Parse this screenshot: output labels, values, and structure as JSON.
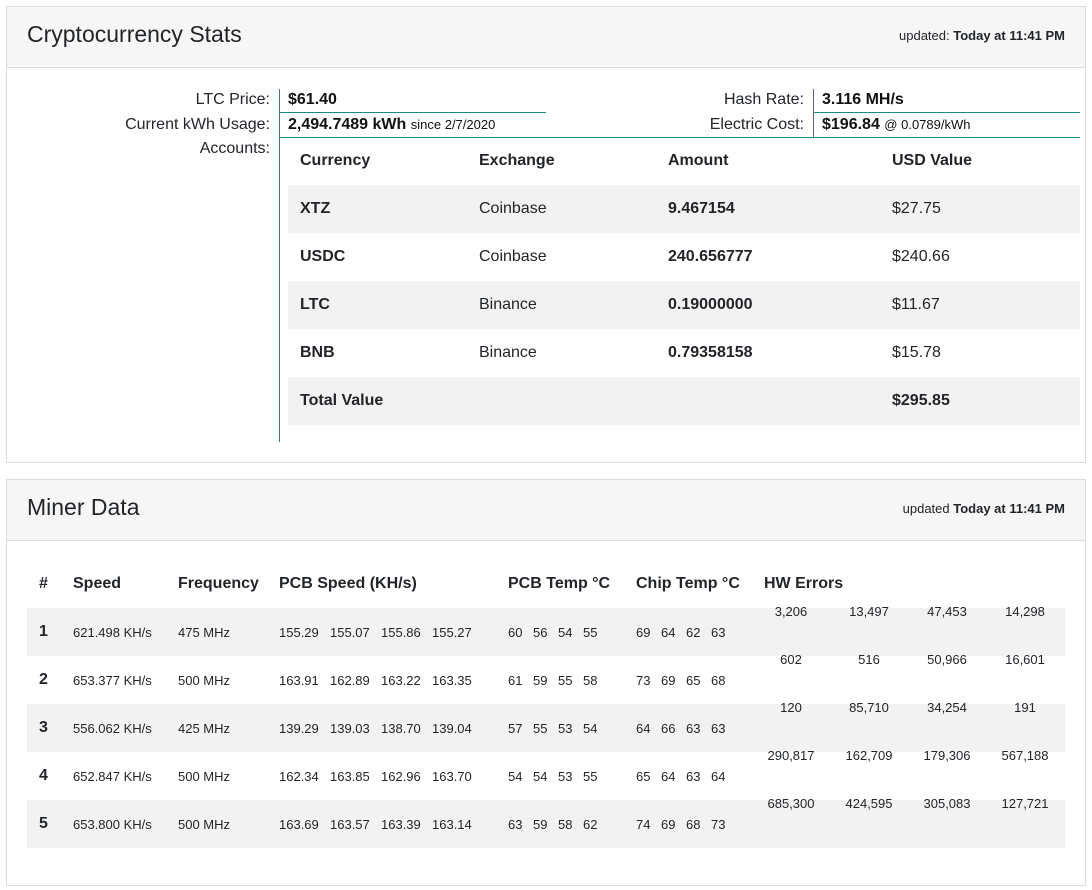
{
  "stats": {
    "title": "Cryptocurrency Stats",
    "updated_label": "updated:",
    "updated_value": "Today at 11:41 PM",
    "ltc_price_label": "LTC Price:",
    "ltc_price": "$61.40",
    "kwh_label": "Current kWh Usage:",
    "kwh_value": "2,494.7489 kWh",
    "kwh_since": "since 2/7/2020",
    "accounts_label": "Accounts:",
    "hash_rate_label": "Hash Rate:",
    "hash_rate": "3.116 MH/s",
    "electric_cost_label": "Electric Cost:",
    "electric_cost": "$196.84",
    "electric_rate": "@ 0.0789/kWh",
    "accent_color": "#1a8a8a",
    "columns": [
      "Currency",
      "Exchange",
      "Amount",
      "USD Value"
    ],
    "accounts": [
      {
        "currency": "XTZ",
        "exchange": "Coinbase",
        "amount": "9.467154",
        "usd": "$27.75"
      },
      {
        "currency": "USDC",
        "exchange": "Coinbase",
        "amount": "240.656777",
        "usd": "$240.66"
      },
      {
        "currency": "LTC",
        "exchange": "Binance",
        "amount": "0.19000000",
        "usd": "$11.67"
      },
      {
        "currency": "BNB",
        "exchange": "Binance",
        "amount": "0.79358158",
        "usd": "$15.78"
      }
    ],
    "total_label": "Total Value",
    "total_value": "$295.85"
  },
  "miner": {
    "title": "Miner Data",
    "updated_label": "updated",
    "updated_value": "Today at 11:41 PM",
    "columns": [
      "#",
      "Speed",
      "Frequency",
      "PCB Speed (KH/s)",
      "PCB Temp °C",
      "Chip Temp °C",
      "HW Errors"
    ],
    "rows": [
      {
        "idx": "1",
        "speed": "621.498 KH/s",
        "freq": "475 MHz",
        "pcb": [
          "155.29",
          "155.07",
          "155.86",
          "155.27"
        ],
        "pcb_temp": [
          "60",
          "56",
          "54",
          "55"
        ],
        "chip_temp": [
          "69",
          "64",
          "62",
          "63"
        ],
        "errors": [
          "3,206",
          "13,497",
          "47,453",
          "14,298"
        ]
      },
      {
        "idx": "2",
        "speed": "653.377 KH/s",
        "freq": "500 MHz",
        "pcb": [
          "163.91",
          "162.89",
          "163.22",
          "163.35"
        ],
        "pcb_temp": [
          "61",
          "59",
          "55",
          "58"
        ],
        "chip_temp": [
          "73",
          "69",
          "65",
          "68"
        ],
        "errors": [
          "602",
          "516",
          "50,966",
          "16,601"
        ]
      },
      {
        "idx": "3",
        "speed": "556.062 KH/s",
        "freq": "425 MHz",
        "pcb": [
          "139.29",
          "139.03",
          "138.70",
          "139.04"
        ],
        "pcb_temp": [
          "57",
          "55",
          "53",
          "54"
        ],
        "chip_temp": [
          "64",
          "66",
          "63",
          "63"
        ],
        "errors": [
          "120",
          "85,710",
          "34,254",
          "191"
        ]
      },
      {
        "idx": "4",
        "speed": "652.847 KH/s",
        "freq": "500 MHz",
        "pcb": [
          "162.34",
          "163.85",
          "162.96",
          "163.70"
        ],
        "pcb_temp": [
          "54",
          "54",
          "53",
          "55"
        ],
        "chip_temp": [
          "65",
          "64",
          "63",
          "64"
        ],
        "errors": [
          "290,817",
          "162,709",
          "179,306",
          "567,188"
        ]
      },
      {
        "idx": "5",
        "speed": "653.800 KH/s",
        "freq": "500 MHz",
        "pcb": [
          "163.69",
          "163.57",
          "163.39",
          "163.14"
        ],
        "pcb_temp": [
          "63",
          "59",
          "58",
          "62"
        ],
        "chip_temp": [
          "74",
          "69",
          "68",
          "73"
        ],
        "errors": [
          "685,300",
          "424,595",
          "305,083",
          "127,721"
        ]
      }
    ]
  }
}
